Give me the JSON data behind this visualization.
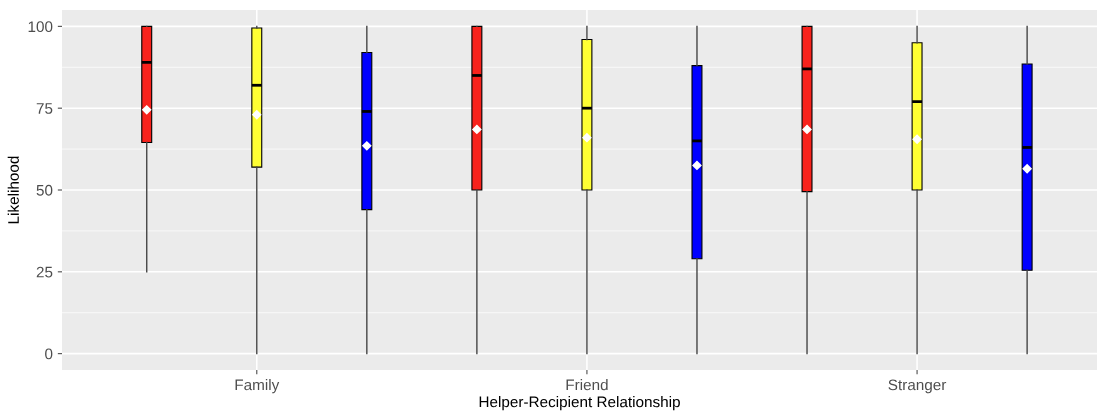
{
  "chart_data": {
    "type": "box",
    "xlabel": "Helper-Recipient Relationship",
    "ylabel": "Likelihood",
    "categories": [
      "Family",
      "Friend",
      "Stranger"
    ],
    "ylim": [
      -5,
      105
    ],
    "yticks": [
      0,
      25,
      50,
      75,
      100
    ],
    "grid": true,
    "series": [
      {
        "color": "#f8221c",
        "boxes": [
          {
            "low": 25,
            "q1": 64.5,
            "median": 89,
            "q3": 100,
            "high": 100,
            "mean": 74.5
          },
          {
            "low": 0,
            "q1": 50,
            "median": 85,
            "q3": 100,
            "high": 100,
            "mean": 68.5
          },
          {
            "low": 0,
            "q1": 49.5,
            "median": 87,
            "q3": 100,
            "high": 100,
            "mean": 68.5
          }
        ]
      },
      {
        "color": "#ffff33",
        "boxes": [
          {
            "low": 0,
            "q1": 57,
            "median": 82,
            "q3": 99.5,
            "high": 100,
            "mean": 73
          },
          {
            "low": 0,
            "q1": 50,
            "median": 75,
            "q3": 96,
            "high": 100,
            "mean": 66
          },
          {
            "low": 0,
            "q1": 50,
            "median": 77,
            "q3": 95,
            "high": 100,
            "mean": 65.5
          }
        ]
      },
      {
        "color": "#0000ff",
        "boxes": [
          {
            "low": 0,
            "q1": 44,
            "median": 74,
            "q3": 92,
            "high": 100,
            "mean": 63.5
          },
          {
            "low": 0,
            "q1": 29,
            "median": 65,
            "q3": 88,
            "high": 100,
            "mean": 57.5
          },
          {
            "low": 0,
            "q1": 25.5,
            "median": 63,
            "q3": 88.5,
            "high": 100,
            "mean": 56.5
          }
        ]
      }
    ]
  }
}
